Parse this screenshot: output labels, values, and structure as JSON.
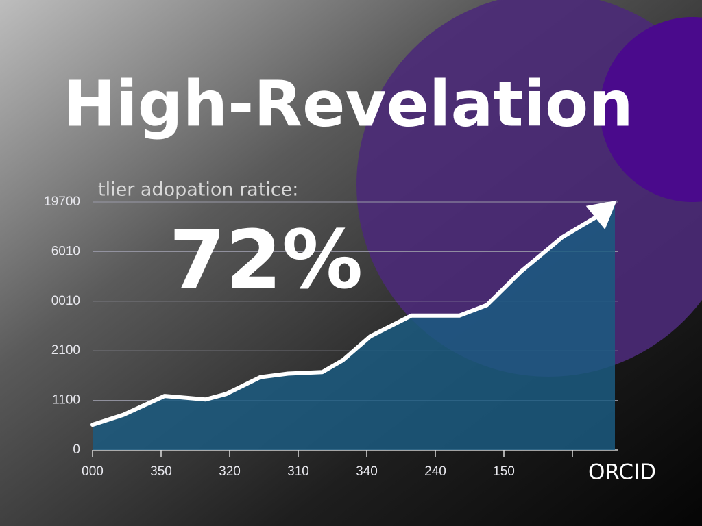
{
  "chart_data": {
    "type": "area",
    "title": "High-Revelation",
    "subtitle": "tlier adopation ratice:",
    "annotation": "72%",
    "logo": "ORCID",
    "x": [
      0,
      0.45,
      1.05,
      1.65,
      1.95,
      2.45,
      2.85,
      3.35,
      3.65,
      4.05,
      4.65,
      5.35,
      5.75,
      6.25,
      6.85,
      7.35,
      7.6
    ],
    "values": [
      0.51,
      0.71,
      1.09,
      1.02,
      1.13,
      1.47,
      1.54,
      1.57,
      1.81,
      2.29,
      2.71,
      2.71,
      2.92,
      3.6,
      4.29,
      4.7,
      4.98
    ],
    "color": "#ffffff",
    "fill_color": "#1b5a80",
    "xlim": [
      0,
      7.62
    ],
    "ylim": [
      0,
      5
    ],
    "xticks": [
      {
        "value": 0,
        "label": "000"
      },
      {
        "value": 1,
        "label": "350"
      },
      {
        "value": 2,
        "label": "320"
      },
      {
        "value": 3,
        "label": "310"
      },
      {
        "value": 4,
        "label": "340"
      },
      {
        "value": 5,
        "label": "240"
      },
      {
        "value": 6,
        "label": "150"
      }
    ],
    "yticks": [
      0,
      {
        "value": 1,
        "label": "1100"
      },
      {
        "value": 2,
        "label": "2100"
      },
      {
        "value": 3,
        "label": "0010"
      },
      {
        "value": 4,
        "label": "6010"
      },
      {
        "value": 5,
        "label": "19700"
      }
    ],
    "grid": true
  }
}
